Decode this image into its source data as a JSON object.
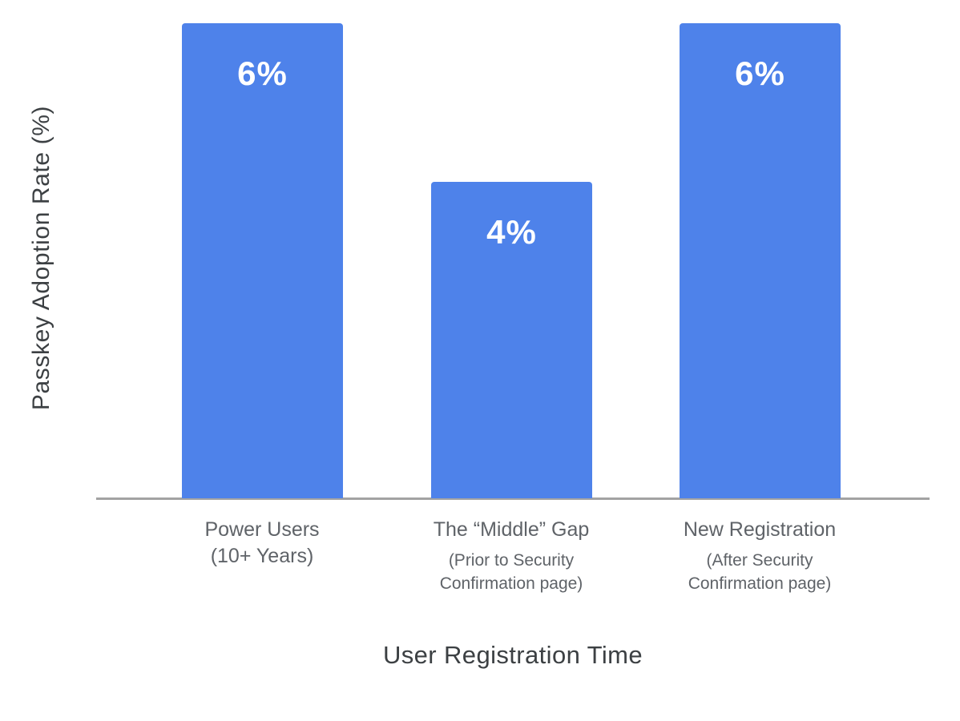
{
  "chart_data": {
    "type": "bar",
    "title": "",
    "xlabel": "User Registration Time",
    "ylabel": "Passkey Adoption Rate (%)",
    "categories": [
      {
        "label": "Power Users\n(10+ Years)",
        "sublabel": ""
      },
      {
        "label": "The “Middle” Gap",
        "sublabel": "(Prior to Security\nConfirmation page)"
      },
      {
        "label": "New Registration",
        "sublabel": "(After Security\nConfirmation page)"
      }
    ],
    "values": [
      6,
      4,
      6
    ],
    "value_labels": [
      "6%",
      "4%",
      "6%"
    ],
    "ylim": [
      0,
      6
    ],
    "grid": false,
    "legend": false,
    "colors": {
      "bar": "#4e82ea",
      "value_label": "#ffffff",
      "category_label": "#5f6368",
      "axis_title": "#3c4043",
      "axis_line": "#a3a3a3",
      "background": "#ffffff"
    }
  }
}
